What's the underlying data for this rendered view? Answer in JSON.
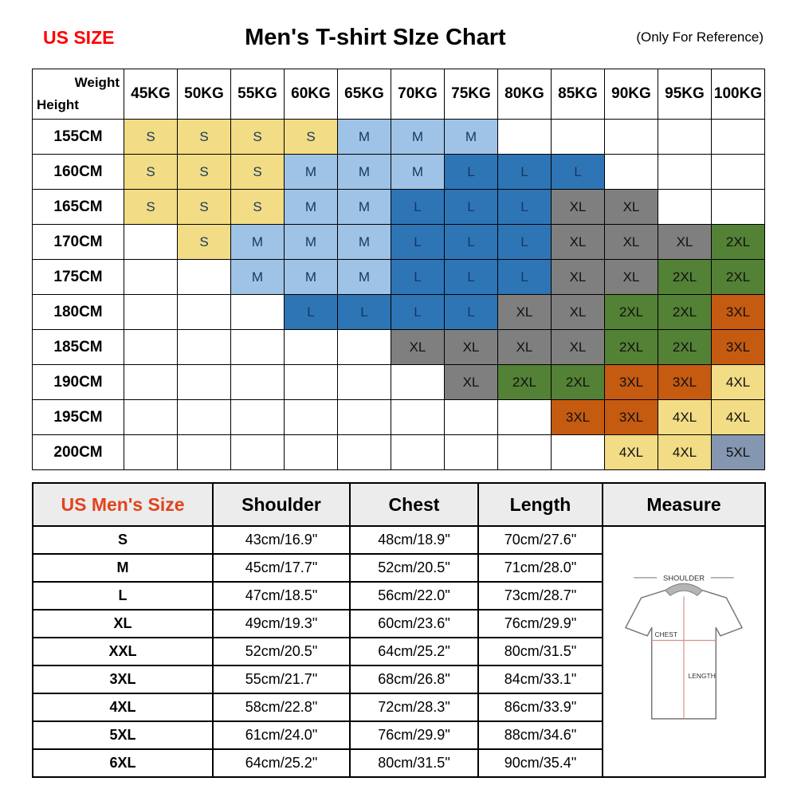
{
  "header": {
    "us_size": "US SIZE",
    "us_size_color": "#FF0000",
    "title": "Men's T-shirt SIze Chart",
    "reference": "(Only For Reference)"
  },
  "size_grid": {
    "corner": {
      "top_right": "Weight",
      "bottom_left": "Height"
    },
    "weight_headers": [
      "45KG",
      "50KG",
      "55KG",
      "60KG",
      "65KG",
      "70KG",
      "75KG",
      "80KG",
      "85KG",
      "90KG",
      "95KG",
      "100KG"
    ],
    "size_colors": {
      "S": {
        "bg": "#F2DC85",
        "text": "#17375E"
      },
      "M": {
        "bg": "#9EC3E6",
        "text": "#17375E"
      },
      "L": {
        "bg": "#2E75B6",
        "text": "#17375E"
      },
      "XL": {
        "bg": "#7F7F7F",
        "text": "#111111"
      },
      "2XL": {
        "bg": "#538135",
        "text": "#111111"
      },
      "3XL": {
        "bg": "#C55A11",
        "text": "#111111"
      },
      "4XL": {
        "bg": "#F2DC85",
        "text": "#111111"
      },
      "5XL": {
        "bg": "#8496B0",
        "text": "#111111"
      }
    },
    "rows": [
      {
        "height": "155CM",
        "cells": [
          "S",
          "S",
          "S",
          "S",
          "M",
          "M",
          "M",
          "",
          "",
          "",
          "",
          ""
        ]
      },
      {
        "height": "160CM",
        "cells": [
          "S",
          "S",
          "S",
          "M",
          "M",
          "M",
          "L",
          "L",
          "L",
          "",
          "",
          ""
        ]
      },
      {
        "height": "165CM",
        "cells": [
          "S",
          "S",
          "S",
          "M",
          "M",
          "L",
          "L",
          "L",
          "XL",
          "XL",
          "",
          ""
        ]
      },
      {
        "height": "170CM",
        "cells": [
          "",
          "S",
          "M",
          "M",
          "M",
          "L",
          "L",
          "L",
          "XL",
          "XL",
          "XL",
          "2XL"
        ]
      },
      {
        "height": "175CM",
        "cells": [
          "",
          "",
          "M",
          "M",
          "M",
          "L",
          "L",
          "L",
          "XL",
          "XL",
          "2XL",
          "2XL"
        ]
      },
      {
        "height": "180CM",
        "cells": [
          "",
          "",
          "",
          "L",
          "L",
          "L",
          "L",
          "XL",
          "XL",
          "2XL",
          "2XL",
          "3XL"
        ]
      },
      {
        "height": "185CM",
        "cells": [
          "",
          "",
          "",
          "",
          "",
          "XL",
          "XL",
          "XL",
          "XL",
          "2XL",
          "2XL",
          "3XL"
        ]
      },
      {
        "height": "190CM",
        "cells": [
          "",
          "",
          "",
          "",
          "",
          "",
          "XL",
          "2XL",
          "2XL",
          "3XL",
          "3XL",
          "4XL"
        ]
      },
      {
        "height": "195CM",
        "cells": [
          "",
          "",
          "",
          "",
          "",
          "",
          "",
          "",
          "3XL",
          "3XL",
          "4XL",
          "4XL"
        ]
      },
      {
        "height": "200CM",
        "cells": [
          "",
          "",
          "",
          "",
          "",
          "",
          "",
          "",
          "",
          "4XL",
          "4XL",
          "5XL"
        ]
      }
    ]
  },
  "measurements": {
    "headers": [
      "US Men's Size",
      "Shoulder",
      "Chest",
      "Length",
      "Measure"
    ],
    "header_accent_color": "#E2431D",
    "rows": [
      {
        "size": "S",
        "shoulder": "43cm/16.9\"",
        "chest": "48cm/18.9\"",
        "length": "70cm/27.6\""
      },
      {
        "size": "M",
        "shoulder": "45cm/17.7\"",
        "chest": "52cm/20.5\"",
        "length": "71cm/28.0\""
      },
      {
        "size": "L",
        "shoulder": "47cm/18.5\"",
        "chest": "56cm/22.0\"",
        "length": "73cm/28.7\""
      },
      {
        "size": "XL",
        "shoulder": "49cm/19.3\"",
        "chest": "60cm/23.6\"",
        "length": "76cm/29.9\""
      },
      {
        "size": "XXL",
        "shoulder": "52cm/20.5\"",
        "chest": "64cm/25.2\"",
        "length": "80cm/31.5\""
      },
      {
        "size": "3XL",
        "shoulder": "55cm/21.7\"",
        "chest": "68cm/26.8\"",
        "length": "84cm/33.1\""
      },
      {
        "size": "4XL",
        "shoulder": "58cm/22.8\"",
        "chest": "72cm/28.3\"",
        "length": "86cm/33.9\""
      },
      {
        "size": "5XL",
        "shoulder": "61cm/24.0\"",
        "chest": "76cm/29.9\"",
        "length": "88cm/34.6\""
      },
      {
        "size": "6XL",
        "shoulder": "64cm/25.2\"",
        "chest": "80cm/31.5\"",
        "length": "90cm/35.4\""
      }
    ],
    "diagram_labels": {
      "shoulder": "SHOULDER",
      "chest": "CHEST",
      "length": "LENGTH"
    }
  }
}
